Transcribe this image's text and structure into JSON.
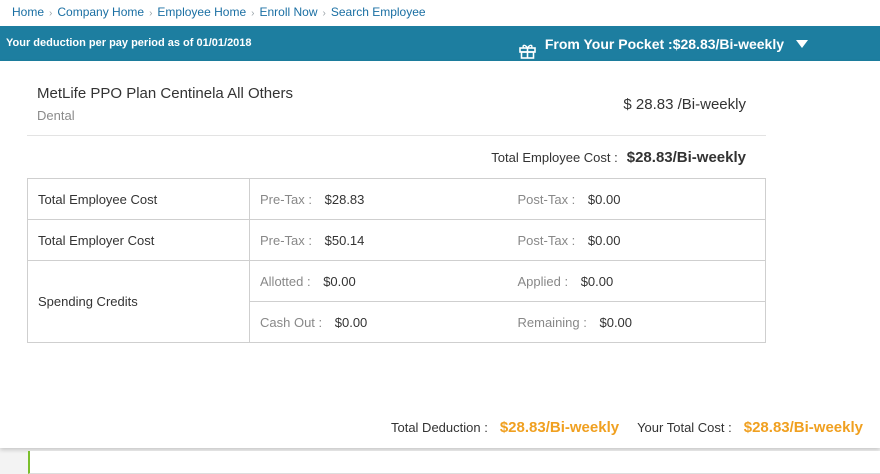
{
  "breadcrumb": [
    "Home",
    "Company Home",
    "Employee Home",
    "Enroll Now",
    "Search Employee"
  ],
  "banner": {
    "as_of": "Your deduction per pay period as of 01/01/2018",
    "pocket_label": "From Your Pocket : ",
    "pocket_value": "$28.83/Bi-weekly",
    "icon": "gift-icon",
    "color": "#1d7ea0"
  },
  "plan": {
    "name": "MetLife PPO Plan Centinela All Others",
    "type": "Dental",
    "cost": "$ 28.83 /Bi-weekly"
  },
  "employee_cost": {
    "label": "Total Employee Cost : ",
    "value": "$28.83/Bi-weekly"
  },
  "table": {
    "employee": {
      "label": "Total Employee Cost",
      "pre_k": "Pre-Tax : ",
      "pre_v": "$28.83",
      "post_k": "Post-Tax : ",
      "post_v": "$0.00"
    },
    "employer": {
      "label": "Total Employer Cost",
      "pre_k": "Pre-Tax : ",
      "pre_v": "$50.14",
      "post_k": "Post-Tax : ",
      "post_v": "$0.00"
    },
    "credits": {
      "label": "Spending Credits",
      "allotted_k": "Allotted : ",
      "allotted_v": "$0.00",
      "applied_k": "Applied : ",
      "applied_v": "$0.00",
      "cashout_k": "Cash Out : ",
      "cashout_v": "$0.00",
      "remaining_k": "Remaining : ",
      "remaining_v": "$0.00"
    }
  },
  "totals": {
    "deduction_label": "Total Deduction : ",
    "deduction_value": "$28.83/Bi-weekly",
    "total_cost_label": "Your Total Cost : ",
    "total_cost_value": "$28.83/Bi-weekly",
    "accent": "#f0a020"
  }
}
